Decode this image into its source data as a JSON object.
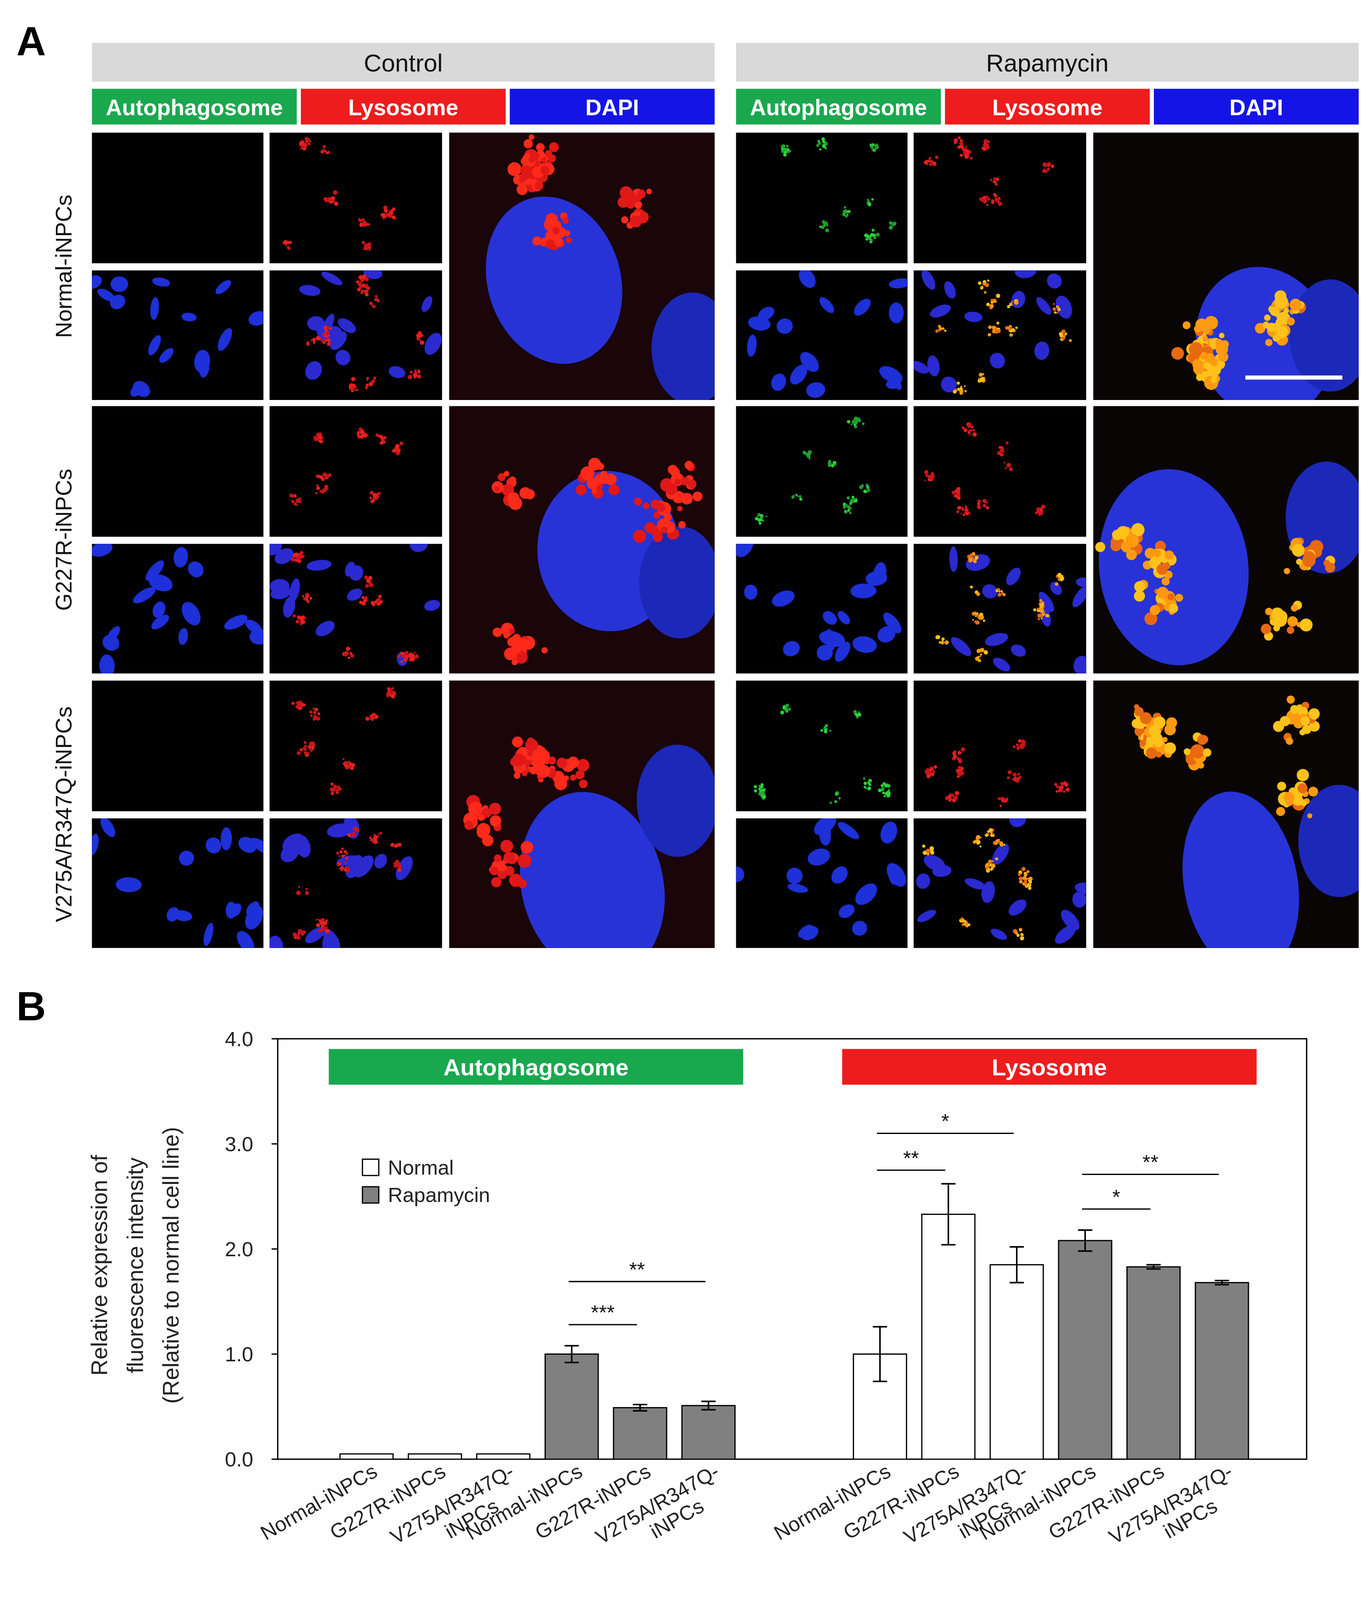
{
  "panel_a": {
    "label": "A",
    "conditions": [
      "Control",
      "Rapamycin"
    ],
    "channels": [
      {
        "label": "Autophagosome",
        "color": "#1aa84f"
      },
      {
        "label": "Lysosome",
        "color": "#ee1c1c"
      },
      {
        "label": "DAPI",
        "color": "#1414e6"
      }
    ],
    "rows": [
      "Normal-iNPCs",
      "G227R-iNPCs",
      "V275A/R347Q-iNPCs"
    ]
  },
  "chart_data": {
    "type": "bar",
    "panel_label": "B",
    "y_label": [
      "Relative expression of",
      "fluorescence intensity",
      "(Relative to normal cell line)"
    ],
    "categories": [
      "Normal-iNPCs",
      "G227R-iNPCs",
      "V275A/R347Q-iNPCs",
      "Normal-iNPCs",
      "G227R-iNPCs",
      "V275A/R347Q-iNPCs",
      "Normal-iNPCs",
      "G227R-iNPCs",
      "V275A/R347Q-iNPCs",
      "Normal-iNPCs",
      "G227R-iNPCs",
      "V275A/R347Q-iNPCs"
    ],
    "groups": [
      {
        "label": "Autophagosome",
        "color": "#1aa84f",
        "start": 0,
        "end": 5
      },
      {
        "label": "Lysosome",
        "color": "#ee1c1c",
        "start": 6,
        "end": 11
      }
    ],
    "series": [
      {
        "name": "Normal",
        "color": "#ffffff",
        "values": [
          0.05,
          0.05,
          0.05,
          null,
          null,
          null,
          1.0,
          2.33,
          1.85,
          null,
          null,
          null
        ],
        "errors": [
          null,
          null,
          null,
          null,
          null,
          null,
          0.26,
          0.29,
          0.17,
          null,
          null,
          null
        ]
      },
      {
        "name": "Rapamycin",
        "color": "#808080",
        "values": [
          null,
          null,
          null,
          1.0,
          0.49,
          0.51,
          null,
          null,
          null,
          2.08,
          1.83,
          1.68
        ],
        "errors": [
          null,
          null,
          null,
          0.08,
          0.03,
          0.04,
          null,
          null,
          null,
          0.1,
          0.02,
          0.02
        ]
      }
    ],
    "ylim": [
      0,
      4
    ],
    "yticks": [
      {
        "value": 0,
        "label": "0.0"
      },
      {
        "value": 1,
        "label": "1.0"
      },
      {
        "value": 2,
        "label": "2.0"
      },
      {
        "value": 3,
        "label": "3.0"
      },
      {
        "value": 4,
        "label": "4.0"
      }
    ],
    "grid": false,
    "legend": "upper left",
    "annotations": [
      {
        "label": "***",
        "between": [
          3,
          4
        ],
        "y": 1.28
      },
      {
        "label": "**",
        "between": [
          3,
          5
        ],
        "y": 1.69
      },
      {
        "label": "**",
        "between": [
          6,
          7
        ],
        "y": 2.75
      },
      {
        "label": "*",
        "between": [
          6,
          8
        ],
        "y": 3.1
      },
      {
        "label": "*",
        "between": [
          9,
          10
        ],
        "y": 2.38
      },
      {
        "label": "**",
        "between": [
          9,
          11
        ],
        "y": 2.71
      }
    ]
  }
}
